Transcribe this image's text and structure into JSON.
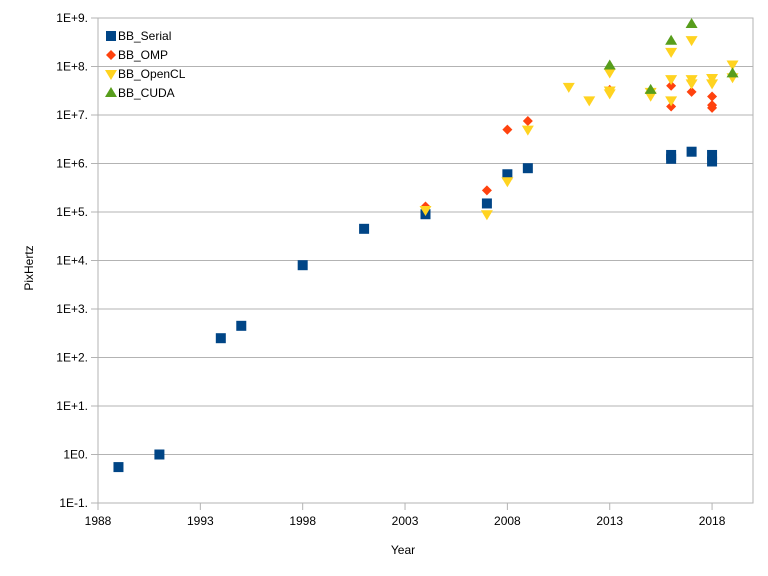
{
  "chart_data": {
    "type": "scatter",
    "title": "",
    "xlabel": "Year",
    "ylabel": "PixHertz",
    "xlim": [
      1988,
      2020
    ],
    "ylim": [
      -1,
      9
    ],
    "yscale": "log10",
    "grid": true,
    "legend_position": "top-left",
    "x_ticks": [
      "1988",
      "1993",
      "1998",
      "2003",
      "2008",
      "2013",
      "2018"
    ],
    "y_ticks": [
      "1E-1.",
      "1E0.",
      "1E+1.",
      "1E+2.",
      "1E+3.",
      "1E+4.",
      "1E+5.",
      "1E+6.",
      "1E+7.",
      "1E+8.",
      "1E+9."
    ],
    "series": [
      {
        "name": "BB_Serial",
        "marker": "square",
        "color": "#004586",
        "points": [
          [
            1989,
            0.55
          ],
          [
            1991,
            1.0
          ],
          [
            1994,
            250
          ],
          [
            1995,
            450
          ],
          [
            1998,
            8000
          ],
          [
            2001,
            45000
          ],
          [
            2004,
            90000
          ],
          [
            2007,
            150000
          ],
          [
            2008,
            600000
          ],
          [
            2009,
            800000
          ],
          [
            2016,
            1250000
          ],
          [
            2016,
            1500000
          ],
          [
            2017,
            1750000
          ],
          [
            2018,
            1100000
          ],
          [
            2018,
            1500000
          ]
        ]
      },
      {
        "name": "BB_OMP",
        "marker": "diamond",
        "color": "#ff420e",
        "points": [
          [
            2004,
            130000
          ],
          [
            2007,
            280000
          ],
          [
            2008,
            5000000
          ],
          [
            2009,
            7500000
          ],
          [
            2013,
            33000000
          ],
          [
            2016,
            15000000
          ],
          [
            2016,
            40000000
          ],
          [
            2017,
            30000000
          ],
          [
            2017,
            50000000
          ],
          [
            2018,
            14000000
          ],
          [
            2018,
            16000000
          ],
          [
            2018,
            24000000
          ]
        ]
      },
      {
        "name": "BB_OpenCL",
        "marker": "triangle-down",
        "color": "#ffd320",
        "points": [
          [
            2004,
            110000
          ],
          [
            2007,
            90000
          ],
          [
            2008,
            430000
          ],
          [
            2009,
            5000000
          ],
          [
            2011,
            38000000
          ],
          [
            2012,
            20000000
          ],
          [
            2013,
            28000000
          ],
          [
            2013,
            32000000
          ],
          [
            2013,
            75000000
          ],
          [
            2015,
            25000000
          ],
          [
            2015,
            30000000
          ],
          [
            2016,
            20000000
          ],
          [
            2016,
            55000000
          ],
          [
            2016,
            200000000
          ],
          [
            2017,
            45000000
          ],
          [
            2017,
            55000000
          ],
          [
            2017,
            350000000
          ],
          [
            2018,
            45000000
          ],
          [
            2018,
            58000000
          ],
          [
            2019,
            60000000
          ],
          [
            2019,
            110000000
          ]
        ]
      },
      {
        "name": "BB_CUDA",
        "marker": "triangle-up",
        "color": "#579d1c",
        "points": [
          [
            2013,
            105000000
          ],
          [
            2015,
            33000000
          ],
          [
            2016,
            340000000
          ],
          [
            2017,
            750000000
          ],
          [
            2019,
            72000000
          ]
        ]
      }
    ]
  }
}
